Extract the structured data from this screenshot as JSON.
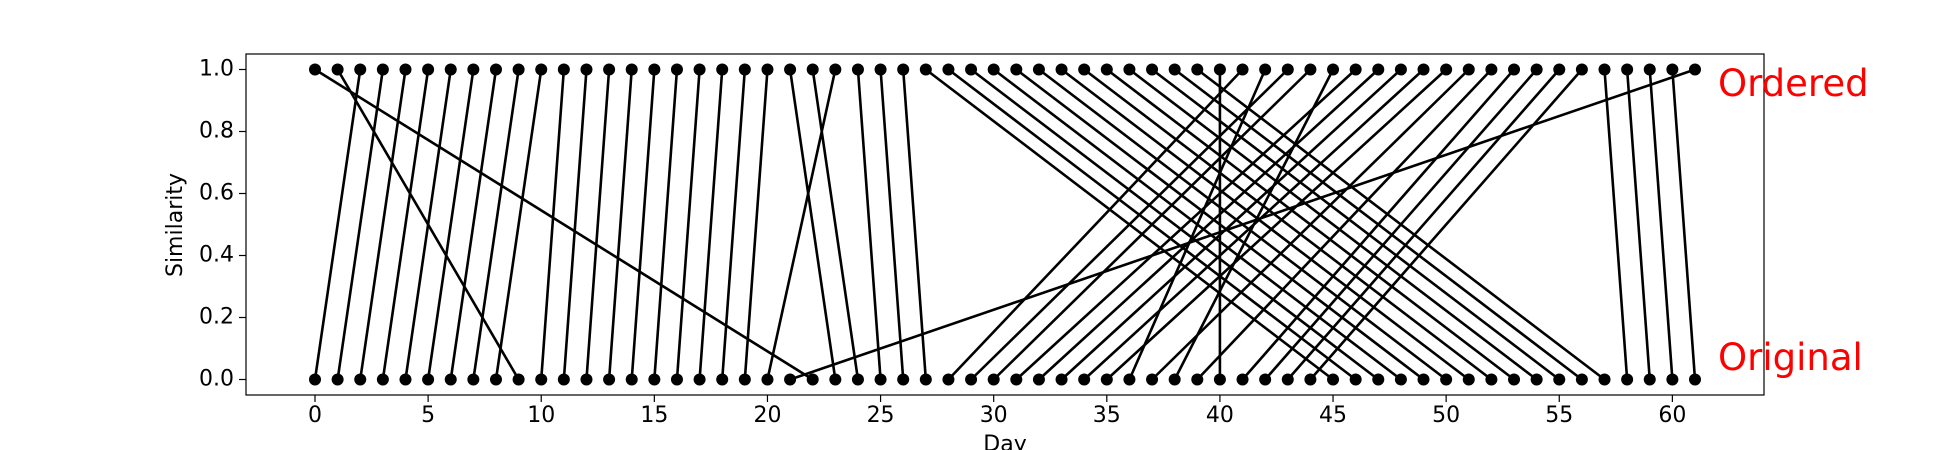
{
  "chart_data": {
    "type": "bipartite",
    "xlabel": "Day",
    "ylabel": "Similarity",
    "x": [
      0,
      1,
      2,
      3,
      4,
      5,
      6,
      7,
      8,
      9,
      10,
      11,
      12,
      13,
      14,
      15,
      16,
      17,
      18,
      19,
      20,
      21,
      22,
      23,
      24,
      25,
      26,
      27,
      28,
      29,
      30,
      31,
      32,
      33,
      34,
      35,
      36,
      37,
      38,
      39,
      40,
      41,
      42,
      43,
      44,
      45,
      46,
      47,
      48,
      49,
      50,
      51,
      52,
      53,
      54,
      55,
      56,
      57,
      58,
      59,
      60,
      61
    ],
    "series": [
      {
        "name": "Ordered",
        "color": "#000000",
        "label_color": "#ff0000",
        "values": [
          1,
          1,
          1,
          1,
          1,
          1,
          1,
          1,
          1,
          1,
          1,
          1,
          1,
          1,
          1,
          1,
          1,
          1,
          1,
          1,
          1,
          1,
          1,
          1,
          1,
          1,
          1,
          1,
          1,
          1,
          1,
          1,
          1,
          1,
          1,
          1,
          1,
          1,
          1,
          1,
          1,
          1,
          1,
          1,
          1,
          1,
          1,
          1,
          1,
          1,
          1,
          1,
          1,
          1,
          1,
          1,
          1,
          1,
          1,
          1,
          1,
          1
        ]
      },
      {
        "name": "Original",
        "color": "#000000",
        "label_color": "#ff0000",
        "values": [
          0,
          0,
          0,
          0,
          0,
          0,
          0,
          0,
          0,
          0,
          0,
          0,
          0,
          0,
          0,
          0,
          0,
          0,
          0,
          0,
          0,
          0,
          0,
          0,
          0,
          0,
          0,
          0,
          0,
          0,
          0,
          0,
          0,
          0,
          0,
          0,
          0,
          0,
          0,
          0,
          0,
          0,
          0,
          0,
          0,
          0,
          0,
          0,
          0,
          0,
          0,
          0,
          0,
          0,
          0,
          0,
          0,
          0,
          0,
          0,
          0,
          0
        ]
      }
    ],
    "links": [
      22,
      9,
      0,
      1,
      2,
      3,
      4,
      5,
      6,
      7,
      8,
      10,
      11,
      12,
      13,
      14,
      15,
      16,
      17,
      18,
      19,
      23,
      24,
      20,
      25,
      26,
      27,
      45,
      46,
      47,
      48,
      49,
      50,
      51,
      52,
      53,
      54,
      55,
      56,
      57,
      40,
      28,
      36,
      29,
      30,
      38,
      31,
      32,
      33,
      34,
      35,
      37,
      39,
      41,
      42,
      43,
      44,
      58,
      59,
      60,
      61,
      21
    ],
    "xlim": [
      -3.05,
      64.05
    ],
    "ylim": [
      -0.05,
      1.05
    ],
    "xticks": [
      0,
      5,
      10,
      15,
      20,
      25,
      30,
      35,
      40,
      45,
      50,
      55,
      60
    ],
    "yticks": [
      {
        "value": 0,
        "label": "0.0"
      },
      {
        "value": 0.2,
        "label": "0.2"
      },
      {
        "value": 0.4,
        "label": "0.4"
      },
      {
        "value": 0.6,
        "label": "0.6"
      },
      {
        "value": 0.8,
        "label": "0.8"
      },
      {
        "value": 1,
        "label": "1.0"
      }
    ]
  }
}
